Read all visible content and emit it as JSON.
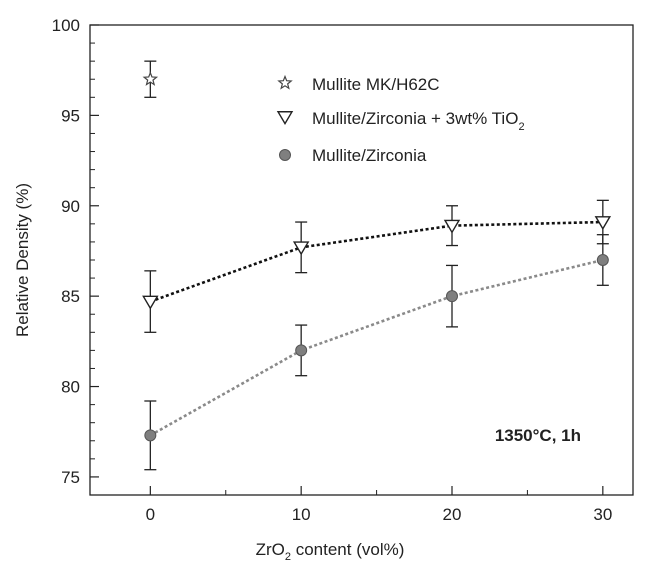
{
  "chart_data": {
    "type": "scatter",
    "xlabel": {
      "pre": "ZrO",
      "sub": "2",
      "post": " content (vol%)"
    },
    "ylabel": "Relative Density (%)",
    "xlim": [
      -4,
      32
    ],
    "ylim": [
      74,
      100
    ],
    "xticks": [
      0,
      10,
      20,
      30
    ],
    "xtick_labels": [
      "0",
      "10",
      "20",
      "30"
    ],
    "yticks": [
      75,
      80,
      85,
      90,
      95,
      100
    ],
    "ytick_labels": [
      "75",
      "80",
      "85",
      "90",
      "95",
      "100"
    ],
    "annotation": "1350°C, 1h",
    "legend_position": "top-right",
    "series": [
      {
        "name": "Mullite MK/H62C",
        "marker": "star",
        "connected": false,
        "x": [
          0
        ],
        "y": [
          97
        ],
        "err": [
          1.0
        ]
      },
      {
        "name_parts": {
          "pre": "Mullite/Zirconia + 3wt% TiO",
          "sub": "2"
        },
        "marker": "triangle-down",
        "connected": true,
        "line_color": "#111111",
        "x": [
          0,
          10,
          20,
          30
        ],
        "y": [
          84.7,
          87.7,
          88.9,
          89.1
        ],
        "err": [
          1.7,
          1.4,
          1.1,
          1.2
        ]
      },
      {
        "name": "Mullite/Zirconia",
        "marker": "circle",
        "connected": true,
        "line_color": "#8a8a8a",
        "marker_color": "#7f7f7f",
        "x": [
          0,
          10,
          20,
          30
        ],
        "y": [
          77.3,
          82.0,
          85.0,
          87.0
        ],
        "err": [
          1.9,
          1.4,
          1.7,
          1.4
        ]
      }
    ]
  }
}
